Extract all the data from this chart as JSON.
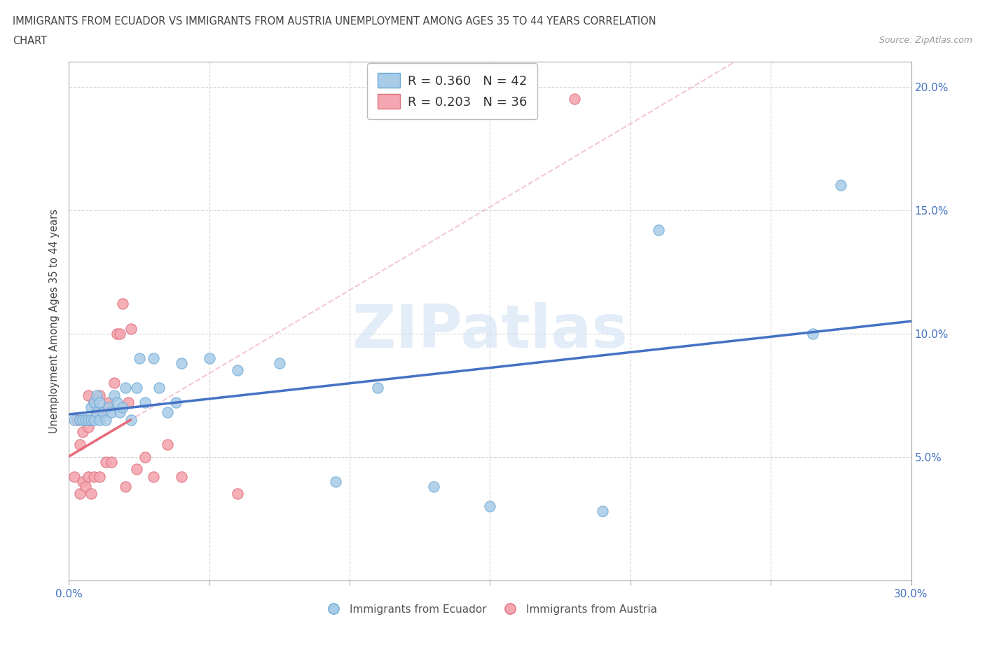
{
  "title_line1": "IMMIGRANTS FROM ECUADOR VS IMMIGRANTS FROM AUSTRIA UNEMPLOYMENT AMONG AGES 35 TO 44 YEARS CORRELATION",
  "title_line2": "CHART",
  "source": "Source: ZipAtlas.com",
  "ylabel": "Unemployment Among Ages 35 to 44 years",
  "xlim": [
    0.0,
    0.3
  ],
  "ylim": [
    0.0,
    0.21
  ],
  "yticks": [
    0.05,
    0.1,
    0.15,
    0.2
  ],
  "ytick_labels": [
    "5.0%",
    "10.0%",
    "15.0%",
    "20.0%"
  ],
  "watermark": "ZIPatlas",
  "ecuador_color": "#A8CBE8",
  "austria_color": "#F4A7B0",
  "ecuador_edge_color": "#6aaad4",
  "austria_edge_color": "#e07080",
  "ecuador_line_color": "#4472C4",
  "austria_line_color": "#E8697A",
  "austria_line_dashed_color": "#F0B0BC",
  "legend_text1": "R = 0.360   N = 42",
  "legend_text2": "R = 0.203   N = 36",
  "legend_label1": "Immigrants from Ecuador",
  "legend_label2": "Immigrants from Austria",
  "ecuador_x": [
    0.002,
    0.004,
    0.005,
    0.006,
    0.007,
    0.008,
    0.008,
    0.009,
    0.009,
    0.01,
    0.01,
    0.011,
    0.011,
    0.012,
    0.013,
    0.014,
    0.015,
    0.016,
    0.017,
    0.018,
    0.019,
    0.02,
    0.022,
    0.024,
    0.025,
    0.027,
    0.03,
    0.032,
    0.035,
    0.038,
    0.04,
    0.05,
    0.06,
    0.075,
    0.095,
    0.11,
    0.13,
    0.15,
    0.19,
    0.21,
    0.265,
    0.275
  ],
  "ecuador_y": [
    0.065,
    0.065,
    0.065,
    0.065,
    0.065,
    0.065,
    0.07,
    0.065,
    0.072,
    0.068,
    0.075,
    0.065,
    0.072,
    0.068,
    0.065,
    0.07,
    0.068,
    0.075,
    0.072,
    0.068,
    0.07,
    0.078,
    0.065,
    0.078,
    0.09,
    0.072,
    0.09,
    0.078,
    0.068,
    0.072,
    0.088,
    0.09,
    0.085,
    0.088,
    0.04,
    0.078,
    0.038,
    0.03,
    0.028,
    0.142,
    0.1,
    0.16
  ],
  "austria_x": [
    0.002,
    0.003,
    0.004,
    0.004,
    0.005,
    0.005,
    0.006,
    0.006,
    0.007,
    0.007,
    0.007,
    0.008,
    0.008,
    0.009,
    0.009,
    0.01,
    0.011,
    0.011,
    0.012,
    0.013,
    0.014,
    0.015,
    0.016,
    0.017,
    0.018,
    0.019,
    0.02,
    0.021,
    0.022,
    0.024,
    0.027,
    0.03,
    0.035,
    0.04,
    0.06,
    0.18
  ],
  "austria_y": [
    0.042,
    0.065,
    0.035,
    0.055,
    0.04,
    0.06,
    0.038,
    0.065,
    0.042,
    0.062,
    0.075,
    0.035,
    0.065,
    0.042,
    0.072,
    0.068,
    0.042,
    0.075,
    0.068,
    0.048,
    0.072,
    0.048,
    0.08,
    0.1,
    0.1,
    0.112,
    0.038,
    0.072,
    0.102,
    0.045,
    0.05,
    0.042,
    0.055,
    0.042,
    0.035,
    0.195
  ]
}
